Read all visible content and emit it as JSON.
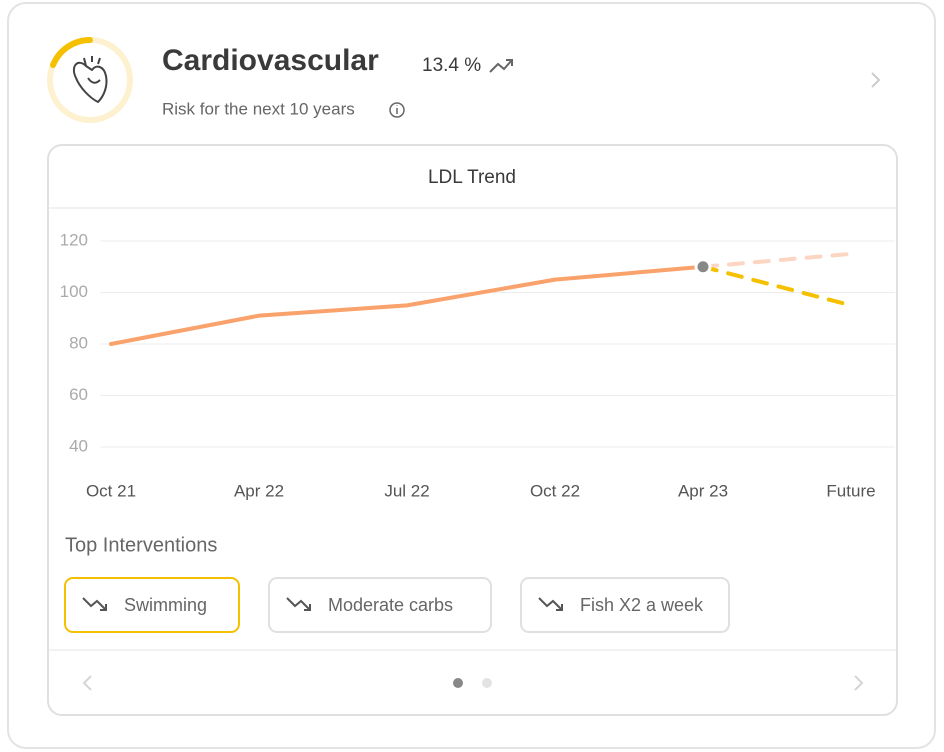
{
  "header": {
    "title": "Cardiovascular",
    "risk": "13.4 %",
    "subtitle": "Risk for the next 10 years"
  },
  "chart_data": {
    "type": "line",
    "title": "LDL Trend",
    "categories": [
      "Oct 21",
      "Apr 22",
      "Jul 22",
      "Oct 22",
      "Apr 23",
      "Future"
    ],
    "series": [
      {
        "color": "#f9a26c",
        "dashed": false,
        "values": [
          80,
          91,
          95,
          105,
          110,
          null
        ]
      },
      {
        "color": "#fcd6c2",
        "dashed": true,
        "values": [
          null,
          null,
          null,
          null,
          110,
          115
        ]
      },
      {
        "color": "#f5c000",
        "dashed": true,
        "values": [
          null,
          null,
          null,
          null,
          110,
          95
        ]
      }
    ],
    "ylim": [
      40,
      120
    ],
    "yticks": [
      40,
      60,
      80,
      100,
      120
    ],
    "grid": true
  },
  "interventions": {
    "title": "Top Interventions",
    "items": [
      "Swimming",
      "Moderate carbs",
      "Fish X2 a week"
    ],
    "selected": 0
  }
}
